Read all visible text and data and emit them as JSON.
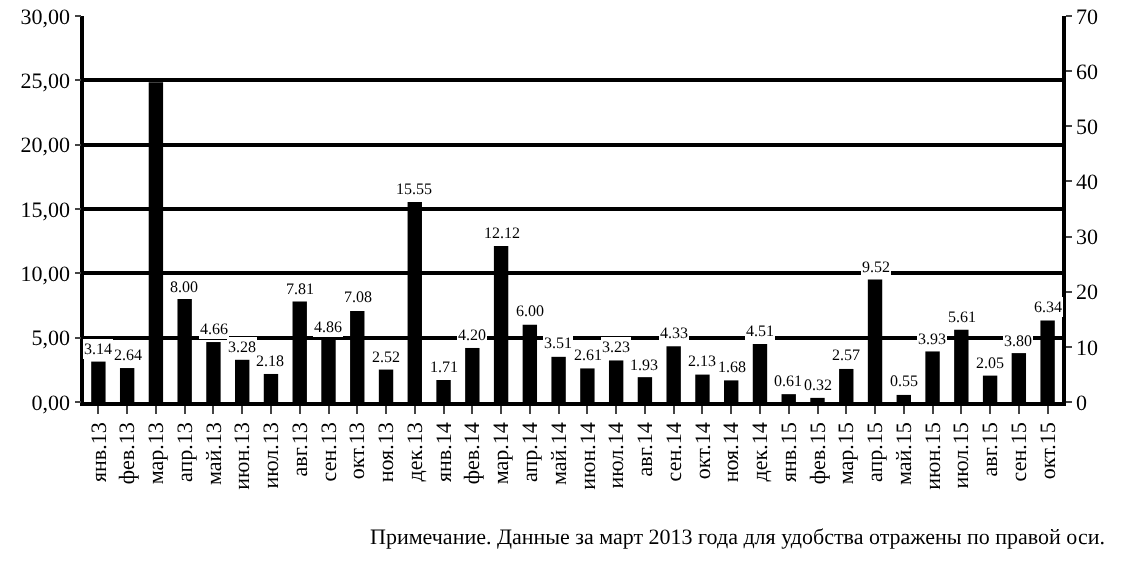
{
  "chart_data": {
    "type": "bar",
    "categories": [
      "янв.13",
      "фев.13",
      "мар.13",
      "апр.13",
      "май.13",
      "июн.13",
      "июл.13",
      "авг.13",
      "сен.13",
      "окт.13",
      "ноя.13",
      "дек.13",
      "янв.14",
      "фев.14",
      "мар.14",
      "апр.14",
      "май.14",
      "июн.14",
      "июл.14",
      "авг.14",
      "сен.14",
      "окт.14",
      "ноя.14",
      "дек.14",
      "янв.15",
      "фев.15",
      "мар.15",
      "апр.15",
      "май.15",
      "июн.15",
      "июл.15",
      "авг.15",
      "сен.15",
      "окт.15"
    ],
    "series": [
      {
        "color": "#000000",
        "values": [
          3.14,
          2.64,
          null,
          8.0,
          4.66,
          3.28,
          2.18,
          7.81,
          4.86,
          7.08,
          2.52,
          15.55,
          1.71,
          4.2,
          12.12,
          6.0,
          3.51,
          2.61,
          3.23,
          1.93,
          4.33,
          2.13,
          1.68,
          4.51,
          0.61,
          0.32,
          2.57,
          9.52,
          0.55,
          3.93,
          5.61,
          2.05,
          3.8,
          6.34
        ],
        "value_labels": [
          "3.14",
          "2.64",
          null,
          "8.00",
          "4.66",
          "3.28",
          "2.18",
          "7.81",
          "4.86",
          "7.08",
          "2.52",
          "15.55",
          "1.71",
          "4.20",
          "12.12",
          "6.00",
          "3.51",
          "2.61",
          "3.23",
          "1.93",
          "4.33",
          "2.13",
          "1.68",
          "4.51",
          "0.61",
          "0.32",
          "2.57",
          "9.52",
          "0.55",
          "3.93",
          "5.61",
          "2.05",
          "3.80",
          "6.34"
        ]
      },
      {
        "color": "#000000",
        "axis": "y2",
        "values": [
          null,
          null,
          58,
          null,
          null,
          null,
          null,
          null,
          null,
          null,
          null,
          null,
          null,
          null,
          null,
          null,
          null,
          null,
          null,
          null,
          null,
          null,
          null,
          null,
          null,
          null,
          null,
          null,
          null,
          null,
          null,
          null,
          null,
          null
        ]
      }
    ],
    "ylim": [
      0,
      30
    ],
    "yticks": [
      {
        "value": 0,
        "label": "0,00"
      },
      {
        "value": 5,
        "label": "5,00"
      },
      {
        "value": 10,
        "label": "10,00"
      },
      {
        "value": 15,
        "label": "15,00"
      },
      {
        "value": 20,
        "label": "20,00"
      },
      {
        "value": 25,
        "label": "25,00"
      },
      {
        "value": 30,
        "label": "30,00"
      }
    ],
    "y2lim": [
      0,
      70
    ],
    "y2ticks": [
      0,
      10,
      20,
      30,
      40,
      50,
      60,
      70
    ],
    "grid": "y",
    "annotations": [
      "Примечание. Данные за март 2013 года для удобства отражены по правой оси."
    ]
  }
}
